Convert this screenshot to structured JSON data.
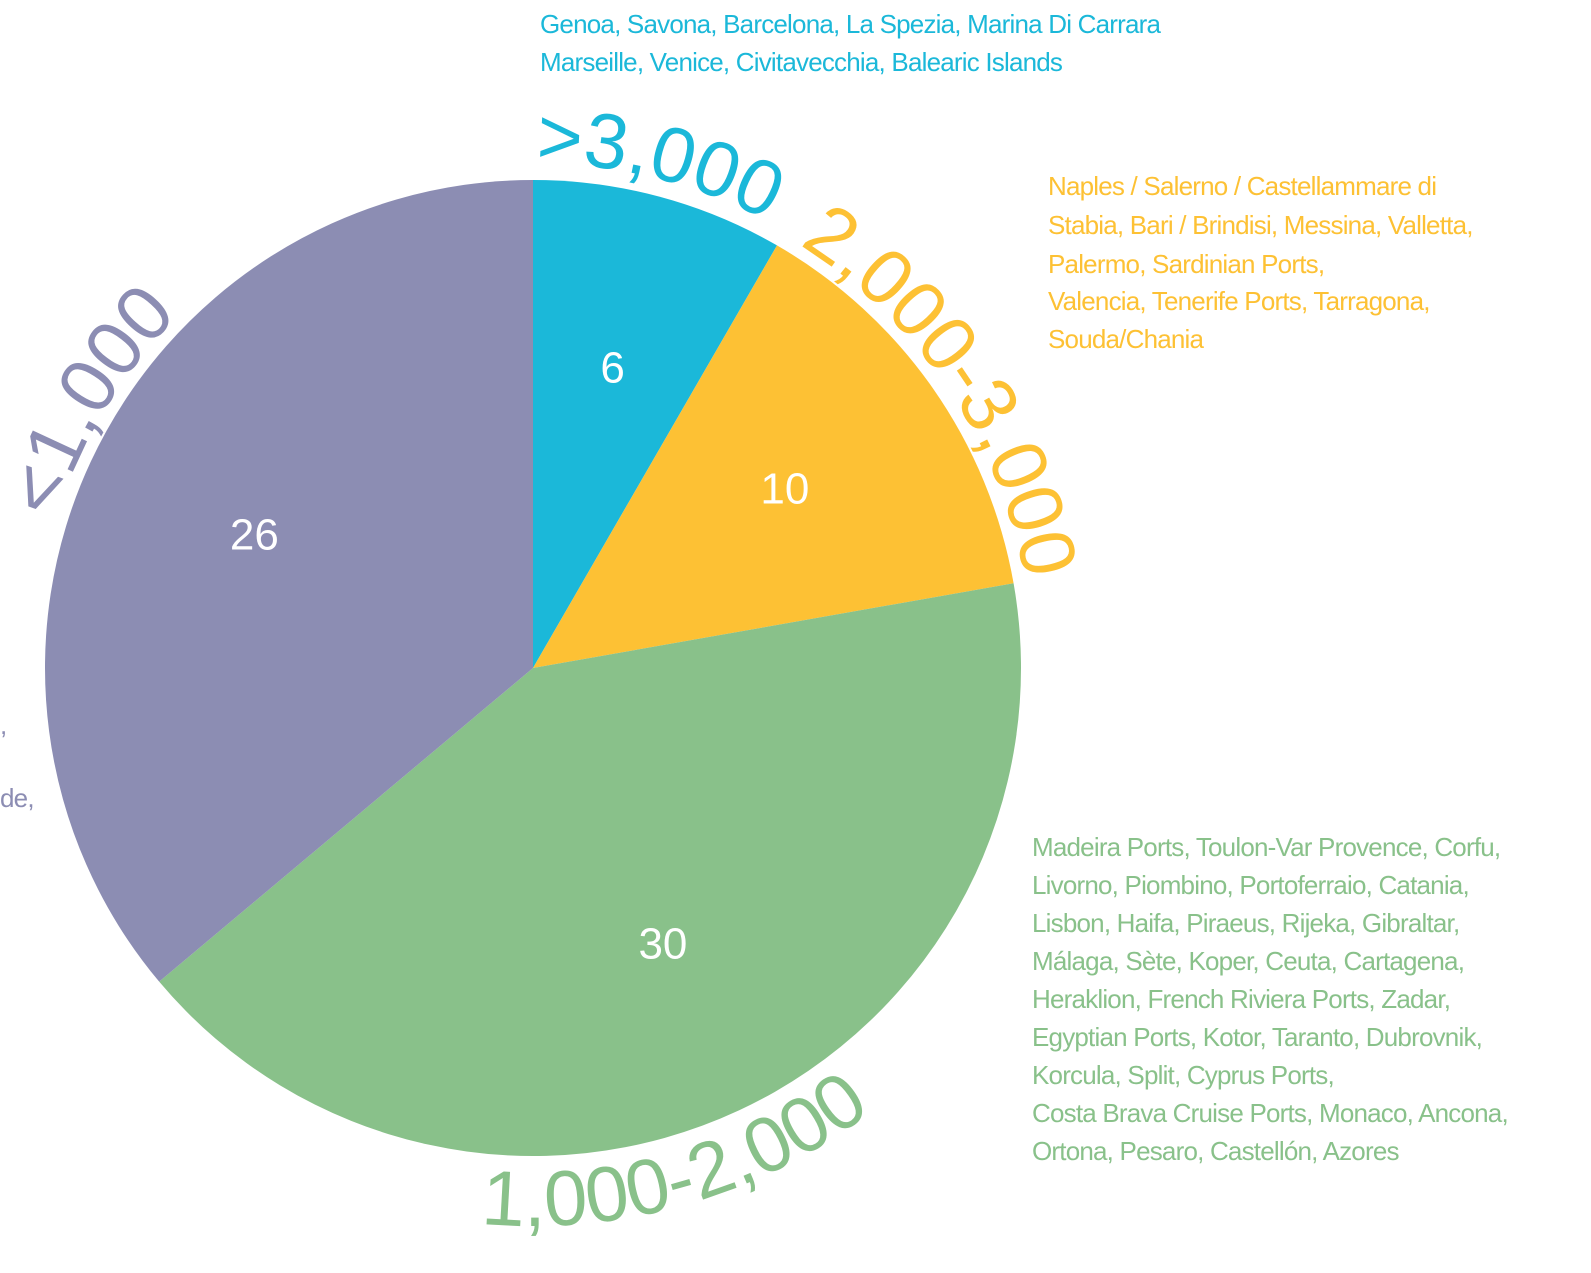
{
  "chart_data": {
    "type": "pie",
    "categories": [
      ">3,000",
      "2,000-3,000",
      "1,000-2,000",
      "<1,000"
    ],
    "values": [
      6,
      10,
      30,
      26
    ],
    "colors": [
      "#1bb8d9",
      "#fdc134",
      "#89c18a",
      "#8c8db3"
    ],
    "annotations": [
      [
        "Genoa, Savona, Barcelona, La Spezia, Marina Di Carrara",
        "Marseille, Venice, Civitavecchia, Balearic Islands"
      ],
      [
        "Naples / Salerno / Castellammare di",
        "Stabia, Bari / Brindisi, Messina, Valletta,",
        "Palermo, Sardinian Ports,",
        "Valencia, Tenerife Ports, Tarragona,",
        "Souda/Chania"
      ],
      [
        "Madeira Ports, Toulon-Var Provence, Corfu,",
        "Livorno, Piombino, Portoferraio, Catania,",
        "Lisbon, Haifa, Piraeus, Rijeka, Gibraltar,",
        "Málaga, Sète, Koper, Ceuta, Cartagena,",
        "Heraklion, French Riviera Ports, Zadar,",
        "Egyptian Ports, Kotor, Taranto, Dubrovnik,",
        "Korcula, Split, Cyprus Ports,",
        "Costa Brava Cruise Ports, Monaco, Ancona,",
        "Ortona, Pesaro, Castellón, Azores"
      ],
      [
        ",",
        "de,"
      ]
    ]
  }
}
